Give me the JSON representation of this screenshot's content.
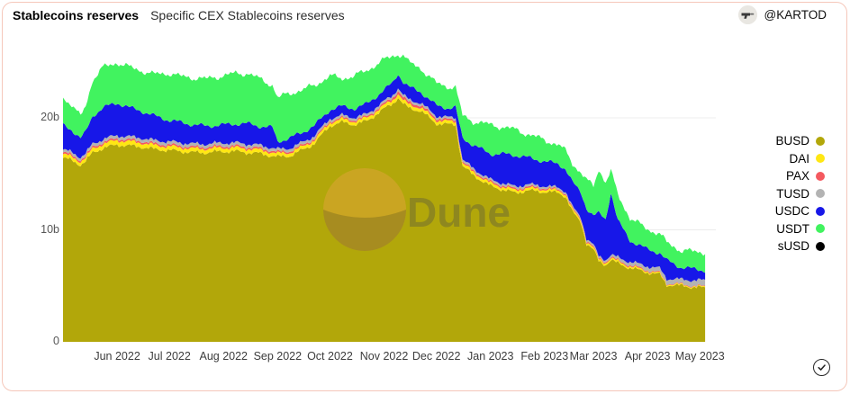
{
  "card": {
    "title": "Stablecoins reserves",
    "subtitle": "Specific CEX Stablecoins reserves",
    "author": "@KARTOD",
    "watermark_text": "Dune",
    "border_color": "#f5c7ba",
    "grid_color": "#ececec"
  },
  "legend": [
    {
      "label": "BUSD",
      "color": "#b2a70a"
    },
    {
      "label": "DAI",
      "color": "#ffe713"
    },
    {
      "label": "PAX",
      "color": "#f4595f"
    },
    {
      "label": "TUSD",
      "color": "#b3b3b3"
    },
    {
      "label": "USDC",
      "color": "#1717e8"
    },
    {
      "label": "USDT",
      "color": "#41f35f"
    },
    {
      "label": "sUSD",
      "color": "#000000"
    }
  ],
  "chart_data": {
    "type": "area",
    "stacked": true,
    "title": "Stablecoins reserves",
    "subtitle": "Specific CEX Stablecoins reserves",
    "unit": "billions USD",
    "legend_position": "right",
    "grid": "horizontal",
    "ylim": [
      0,
      25.7
    ],
    "xlim_dates": [
      "2022-05-01",
      "2023-05-05"
    ],
    "yticks": [
      {
        "value": 0,
        "label": "0"
      },
      {
        "value": 10,
        "label": "10b"
      },
      {
        "value": 20,
        "label": "20b"
      }
    ],
    "xticks": [
      {
        "date": "2022-06-01",
        "label": "Jun 2022"
      },
      {
        "date": "2022-07-01",
        "label": "Jul 2022"
      },
      {
        "date": "2022-08-01",
        "label": "Aug 2022"
      },
      {
        "date": "2022-09-01",
        "label": "Sep 2022"
      },
      {
        "date": "2022-10-01",
        "label": "Oct 2022"
      },
      {
        "date": "2022-11-01",
        "label": "Nov 2022"
      },
      {
        "date": "2022-12-01",
        "label": "Dec 2022"
      },
      {
        "date": "2023-01-01",
        "label": "Jan 2023"
      },
      {
        "date": "2023-02-01",
        "label": "Feb 2023"
      },
      {
        "date": "2023-03-01",
        "label": "Mar 2023"
      },
      {
        "date": "2023-04-01",
        "label": "Apr 2023"
      },
      {
        "date": "2023-05-01",
        "label": "May 2023"
      }
    ],
    "series_order_bottom_to_top": [
      "BUSD",
      "DAI",
      "PAX",
      "TUSD",
      "USDC",
      "USDT",
      "sUSD"
    ],
    "columns": [
      "date",
      "BUSD",
      "DAI",
      "PAX",
      "TUSD",
      "USDC",
      "USDT",
      "sUSD"
    ],
    "rows": [
      [
        "2022-05-01",
        16.4,
        0.35,
        0.15,
        0.25,
        2.2,
        2.5,
        0.02
      ],
      [
        "2022-05-06",
        16.2,
        0.33,
        0.15,
        0.25,
        2.0,
        2.2,
        0.02
      ],
      [
        "2022-05-11",
        15.8,
        0.3,
        0.15,
        0.24,
        1.7,
        1.9,
        0.02
      ],
      [
        "2022-05-14",
        16.1,
        0.32,
        0.15,
        0.25,
        1.9,
        2.4,
        0.02
      ],
      [
        "2022-05-18",
        16.9,
        0.36,
        0.15,
        0.27,
        2.5,
        3.2,
        0.02
      ],
      [
        "2022-05-24",
        17.3,
        0.38,
        0.15,
        0.28,
        2.8,
        3.6,
        0.02
      ],
      [
        "2022-06-01",
        17.6,
        0.4,
        0.15,
        0.28,
        2.9,
        3.6,
        0.02
      ],
      [
        "2022-06-08",
        17.5,
        0.39,
        0.15,
        0.28,
        2.6,
        3.6,
        0.02
      ],
      [
        "2022-06-15",
        17.4,
        0.38,
        0.15,
        0.28,
        2.4,
        3.6,
        0.02
      ],
      [
        "2022-06-22",
        17.2,
        0.36,
        0.15,
        0.28,
        2.2,
        3.7,
        0.02
      ],
      [
        "2022-07-01",
        17.1,
        0.35,
        0.15,
        0.28,
        1.9,
        4.2,
        0.02
      ],
      [
        "2022-07-08",
        17.0,
        0.35,
        0.15,
        0.28,
        1.8,
        4.1,
        0.02
      ],
      [
        "2022-07-15",
        16.9,
        0.35,
        0.15,
        0.28,
        1.7,
        4.2,
        0.02
      ],
      [
        "2022-07-22",
        16.9,
        0.34,
        0.15,
        0.28,
        1.6,
        4.2,
        0.02
      ],
      [
        "2022-08-01",
        17.0,
        0.34,
        0.15,
        0.28,
        1.6,
        4.4,
        0.02
      ],
      [
        "2022-08-08",
        17.0,
        0.34,
        0.15,
        0.28,
        1.7,
        4.5,
        0.02
      ],
      [
        "2022-08-15",
        16.9,
        0.34,
        0.15,
        0.28,
        1.8,
        4.5,
        0.02
      ],
      [
        "2022-08-22",
        16.8,
        0.33,
        0.15,
        0.27,
        1.7,
        4.2,
        0.02
      ],
      [
        "2022-08-29",
        16.6,
        0.32,
        0.15,
        0.26,
        1.8,
        3.8,
        0.02
      ],
      [
        "2022-09-01",
        16.5,
        0.3,
        0.14,
        0.25,
        0.7,
        3.9,
        0.02
      ],
      [
        "2022-09-08",
        16.6,
        0.3,
        0.14,
        0.25,
        0.9,
        4.0,
        0.02
      ],
      [
        "2022-09-15",
        17.1,
        0.3,
        0.14,
        0.25,
        0.9,
        3.8,
        0.02
      ],
      [
        "2022-09-22",
        17.7,
        0.3,
        0.14,
        0.25,
        0.9,
        3.6,
        0.02
      ],
      [
        "2022-10-01",
        19.3,
        0.28,
        0.13,
        0.22,
        0.8,
        3.0,
        0.02
      ],
      [
        "2022-10-08",
        19.6,
        0.28,
        0.13,
        0.22,
        0.8,
        2.5,
        0.02
      ],
      [
        "2022-10-15",
        19.4,
        0.28,
        0.13,
        0.22,
        0.8,
        2.9,
        0.02
      ],
      [
        "2022-10-22",
        19.7,
        0.28,
        0.13,
        0.22,
        0.9,
        3.0,
        0.02
      ],
      [
        "2022-11-01",
        20.8,
        0.3,
        0.15,
        0.22,
        1.0,
        2.7,
        0.02
      ],
      [
        "2022-11-06",
        21.3,
        0.32,
        0.2,
        0.22,
        1.1,
        2.4,
        0.02
      ],
      [
        "2022-11-09",
        21.8,
        0.35,
        0.28,
        0.23,
        1.3,
        1.7,
        0.02
      ],
      [
        "2022-11-12",
        21.2,
        0.33,
        0.25,
        0.23,
        1.2,
        2.4,
        0.02
      ],
      [
        "2022-11-15",
        20.9,
        0.32,
        0.22,
        0.22,
        1.1,
        2.2,
        0.02
      ],
      [
        "2022-11-22",
        20.6,
        0.3,
        0.2,
        0.22,
        1.0,
        2.1,
        0.02
      ],
      [
        "2022-12-01",
        19.5,
        0.3,
        0.18,
        0.2,
        0.9,
        2.0,
        0.02
      ],
      [
        "2022-12-08",
        19.4,
        0.28,
        0.15,
        0.2,
        0.85,
        1.9,
        0.02
      ],
      [
        "2022-12-12",
        19.4,
        0.28,
        0.15,
        0.2,
        0.9,
        1.8,
        0.02
      ],
      [
        "2022-12-14",
        17.5,
        0.27,
        0.14,
        0.2,
        1.4,
        1.9,
        0.02
      ],
      [
        "2022-12-16",
        15.7,
        0.26,
        0.13,
        0.2,
        1.9,
        2.0,
        0.02
      ],
      [
        "2022-12-22",
        14.9,
        0.26,
        0.13,
        0.2,
        2.1,
        2.1,
        0.02
      ],
      [
        "2023-01-01",
        13.9,
        0.25,
        0.13,
        0.2,
        2.3,
        2.6,
        0.02
      ],
      [
        "2023-01-08",
        13.6,
        0.24,
        0.13,
        0.2,
        2.6,
        2.4,
        0.02
      ],
      [
        "2023-01-15",
        13.3,
        0.24,
        0.13,
        0.2,
        2.8,
        2.3,
        0.02
      ],
      [
        "2023-01-22",
        13.5,
        0.23,
        0.13,
        0.2,
        2.4,
        2.1,
        0.02
      ],
      [
        "2023-02-01",
        13.4,
        0.22,
        0.12,
        0.18,
        2.2,
        1.9,
        0.02
      ],
      [
        "2023-02-09",
        13.3,
        0.2,
        0.11,
        0.16,
        2.1,
        1.7,
        0.02
      ],
      [
        "2023-02-13",
        13.0,
        0.2,
        0.1,
        0.16,
        2.0,
        1.6,
        0.02
      ],
      [
        "2023-02-17",
        11.6,
        0.19,
        0.1,
        0.16,
        2.2,
        1.7,
        0.02
      ],
      [
        "2023-02-22",
        10.6,
        0.18,
        0.1,
        0.17,
        2.2,
        1.8,
        0.02
      ],
      [
        "2023-02-25",
        8.8,
        0.18,
        0.1,
        0.18,
        2.7,
        2.5,
        0.02
      ],
      [
        "2023-03-01",
        8.2,
        0.18,
        0.1,
        0.18,
        2.6,
        2.6,
        0.02
      ],
      [
        "2023-03-04",
        7.2,
        0.18,
        0.1,
        0.18,
        3.8,
        4.0,
        0.02
      ],
      [
        "2023-03-08",
        6.9,
        0.17,
        0.1,
        0.18,
        3.6,
        3.3,
        0.02
      ],
      [
        "2023-03-11",
        7.3,
        0.17,
        0.1,
        0.2,
        5.6,
        1.9,
        0.02
      ],
      [
        "2023-03-15",
        7.0,
        0.17,
        0.1,
        0.25,
        3.3,
        2.3,
        0.02
      ],
      [
        "2023-03-22",
        6.6,
        0.15,
        0.1,
        0.3,
        1.9,
        2.0,
        0.02
      ],
      [
        "2023-04-01",
        6.2,
        0.12,
        0.08,
        0.35,
        1.5,
        1.8,
        0.02
      ],
      [
        "2023-04-08",
        6.0,
        0.1,
        0.07,
        0.38,
        1.4,
        1.7,
        0.02
      ],
      [
        "2023-04-12",
        5.1,
        0.1,
        0.06,
        0.4,
        1.6,
        1.6,
        0.02
      ],
      [
        "2023-04-20",
        5.0,
        0.09,
        0.06,
        0.42,
        1.1,
        1.5,
        0.02
      ],
      [
        "2023-04-27",
        4.9,
        0.08,
        0.05,
        0.48,
        1.0,
        1.55,
        0.02
      ],
      [
        "2023-05-04",
        4.8,
        0.08,
        0.05,
        0.55,
        0.9,
        1.6,
        0.02
      ]
    ]
  }
}
